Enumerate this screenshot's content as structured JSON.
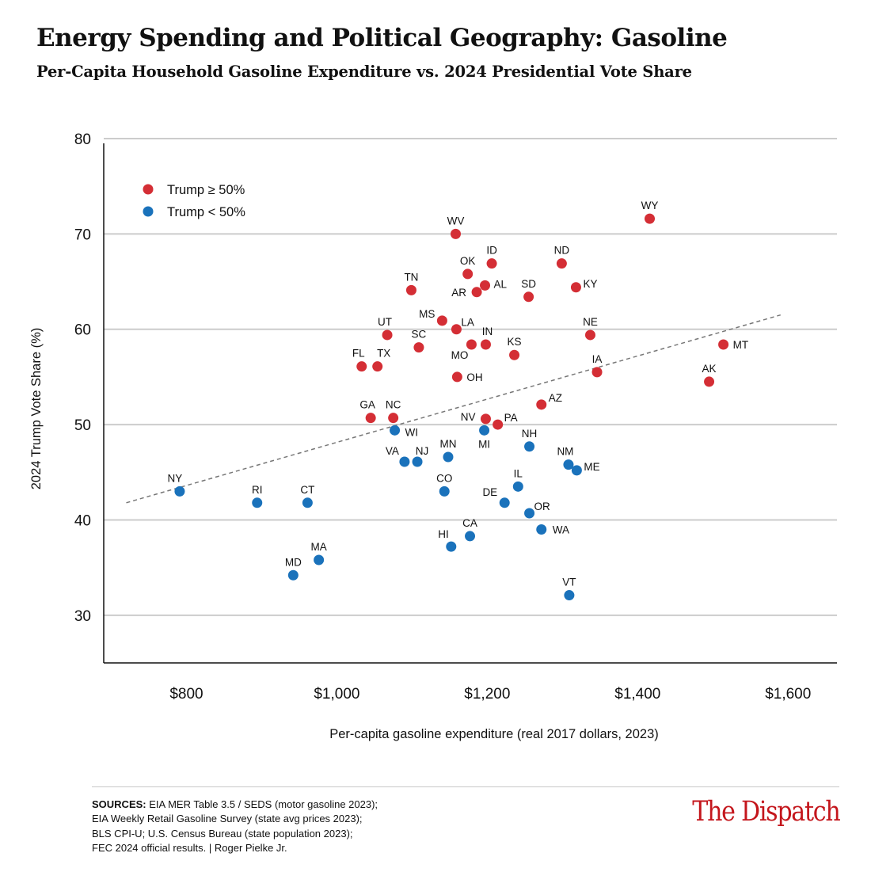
{
  "title": "Energy Spending and Political Geography: Gasoline",
  "subtitle": "Per-Capita Household Gasoline Expenditure vs. 2024 Presidential Vote Share",
  "colors": {
    "trump_50_plus": "#d42e35",
    "trump_under_50": "#1a72bb",
    "gridline": "#cccccc",
    "trendline": "#777777",
    "brand": "#c4161c"
  },
  "chart_data": {
    "type": "scatter",
    "xlabel": "Per-capita gasoline expenditure (real 2017 dollars, 2023)",
    "ylabel": "2024 Trump Vote Share (%)",
    "xlim": [
      690,
      1665
    ],
    "ylim": [
      25,
      80
    ],
    "x_ticks": [
      800,
      1000,
      1200,
      1400,
      1600
    ],
    "x_tick_labels": [
      "$800",
      "$1,000",
      "$1,200",
      "$1,400",
      "$1,600"
    ],
    "y_ticks": [
      30,
      40,
      50,
      60,
      70,
      80
    ],
    "y_tick_labels": [
      "30",
      "40",
      "50",
      "60",
      "70",
      "80"
    ],
    "grid": "horizontal",
    "legend_position": "top-left",
    "trendline": {
      "style": "dashed",
      "x": [
        720,
        1590
      ],
      "y": [
        41.8,
        61.5
      ]
    },
    "series": [
      {
        "name": "Trump ≥ 50%",
        "points": [
          {
            "label": "WY",
            "x": 1416,
            "y": 71.6
          },
          {
            "label": "WV",
            "x": 1158,
            "y": 70.0
          },
          {
            "label": "ID",
            "x": 1206,
            "y": 66.9
          },
          {
            "label": "ND",
            "x": 1299,
            "y": 66.9
          },
          {
            "label": "OK",
            "x": 1174,
            "y": 65.8
          },
          {
            "label": "AL",
            "x": 1197,
            "y": 64.6
          },
          {
            "label": "KY",
            "x": 1318,
            "y": 64.4
          },
          {
            "label": "TN",
            "x": 1099,
            "y": 64.1
          },
          {
            "label": "AR",
            "x": 1186,
            "y": 63.9
          },
          {
            "label": "SD",
            "x": 1255,
            "y": 63.4
          },
          {
            "label": "MS",
            "x": 1140,
            "y": 60.9
          },
          {
            "label": "LA",
            "x": 1159,
            "y": 60.0
          },
          {
            "label": "UT",
            "x": 1067,
            "y": 59.4
          },
          {
            "label": "NE",
            "x": 1337,
            "y": 59.4
          },
          {
            "label": "MT",
            "x": 1514,
            "y": 58.4
          },
          {
            "label": "IN",
            "x": 1198,
            "y": 58.4
          },
          {
            "label": "SC",
            "x": 1109,
            "y": 58.1
          },
          {
            "label": "MO",
            "x": 1179,
            "y": 58.4
          },
          {
            "label": "KS",
            "x": 1236,
            "y": 57.3
          },
          {
            "label": "FL",
            "x": 1033,
            "y": 56.1
          },
          {
            "label": "TX",
            "x": 1054,
            "y": 56.1
          },
          {
            "label": "IA",
            "x": 1346,
            "y": 55.5
          },
          {
            "label": "OH",
            "x": 1160,
            "y": 55.0
          },
          {
            "label": "AK",
            "x": 1495,
            "y": 54.5
          },
          {
            "label": "AZ",
            "x": 1272,
            "y": 52.1
          },
          {
            "label": "GA",
            "x": 1045,
            "y": 50.7
          },
          {
            "label": "NC",
            "x": 1075,
            "y": 50.7
          },
          {
            "label": "NV",
            "x": 1198,
            "y": 50.6
          },
          {
            "label": "PA",
            "x": 1214,
            "y": 50.0
          }
        ]
      },
      {
        "name": "Trump < 50%",
        "points": [
          {
            "label": "WI",
            "x": 1077,
            "y": 49.4
          },
          {
            "label": "MI",
            "x": 1196,
            "y": 49.4
          },
          {
            "label": "NH",
            "x": 1256,
            "y": 47.7
          },
          {
            "label": "MN",
            "x": 1148,
            "y": 46.6
          },
          {
            "label": "VA",
            "x": 1090,
            "y": 46.1
          },
          {
            "label": "NJ",
            "x": 1107,
            "y": 46.1
          },
          {
            "label": "NM",
            "x": 1308,
            "y": 45.8
          },
          {
            "label": "ME",
            "x": 1319,
            "y": 45.2
          },
          {
            "label": "IL",
            "x": 1241,
            "y": 43.5
          },
          {
            "label": "CO",
            "x": 1143,
            "y": 43.0
          },
          {
            "label": "NY",
            "x": 791,
            "y": 43.0
          },
          {
            "label": "DE",
            "x": 1223,
            "y": 41.8
          },
          {
            "label": "RI",
            "x": 894,
            "y": 41.8
          },
          {
            "label": "CT",
            "x": 961,
            "y": 41.8
          },
          {
            "label": "OR",
            "x": 1256,
            "y": 40.7
          },
          {
            "label": "WA",
            "x": 1272,
            "y": 39.0
          },
          {
            "label": "CA",
            "x": 1177,
            "y": 38.3
          },
          {
            "label": "HI",
            "x": 1152,
            "y": 37.2
          },
          {
            "label": "MA",
            "x": 976,
            "y": 35.8
          },
          {
            "label": "MD",
            "x": 942,
            "y": 34.2
          },
          {
            "label": "VT",
            "x": 1309,
            "y": 32.1
          }
        ]
      }
    ]
  },
  "footer": {
    "sources_label": "SOURCES:",
    "sources_lines": [
      " EIA MER Table 3.5 / SEDS (motor gasoline 2023);",
      "EIA Weekly Retail Gasoline Survey (state avg prices 2023);",
      "BLS CPI-U; U.S. Census Bureau (state population 2023);",
      "FEC 2024 official results. | Roger Pielke Jr."
    ],
    "brand": "The Dispatch"
  }
}
